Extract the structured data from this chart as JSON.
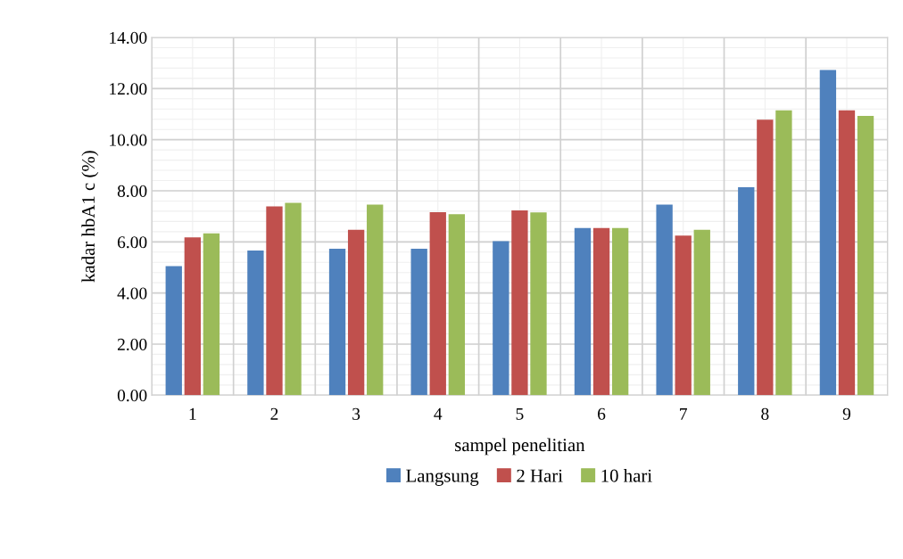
{
  "chart_data": {
    "type": "bar",
    "xlabel": "sampel penelitian",
    "ylabel": "kadar hbA1 c (%)",
    "categories": [
      "1",
      "2",
      "3",
      "4",
      "5",
      "6",
      "7",
      "8",
      "9"
    ],
    "series": [
      {
        "name": "Langsung",
        "color": "#4f81bd",
        "values": [
          5.05,
          5.66,
          5.73,
          5.73,
          6.03,
          6.54,
          7.46,
          8.14,
          12.73
        ]
      },
      {
        "name": "2 Hari",
        "color": "#c0504d",
        "values": [
          6.18,
          7.39,
          6.47,
          7.16,
          7.23,
          6.54,
          6.25,
          10.78,
          11.15
        ]
      },
      {
        "name": "10 hari",
        "color": "#9bbb59",
        "values": [
          6.33,
          7.53,
          7.46,
          7.08,
          7.15,
          6.54,
          6.47,
          11.15,
          10.93
        ]
      }
    ],
    "ylim": [
      0,
      14
    ],
    "yticks": [
      {
        "value": 0,
        "label": "0.00"
      },
      {
        "value": 2,
        "label": "2.00"
      },
      {
        "value": 4,
        "label": "4.00"
      },
      {
        "value": 6,
        "label": "6.00"
      },
      {
        "value": 8,
        "label": "8.00"
      },
      {
        "value": 10,
        "label": "10.00"
      },
      {
        "value": 12,
        "label": "12.00"
      },
      {
        "value": 14,
        "label": "14.00"
      }
    ],
    "grid": true,
    "legend": "bottom"
  }
}
